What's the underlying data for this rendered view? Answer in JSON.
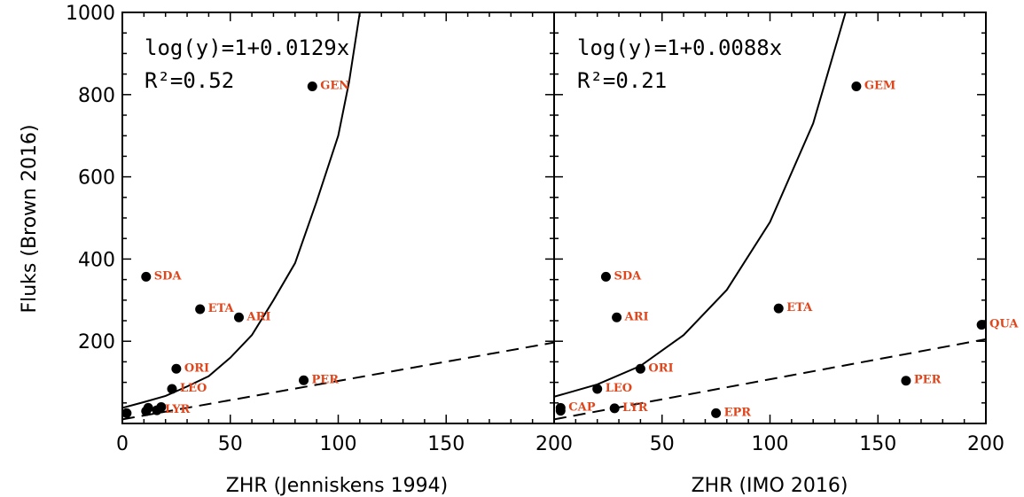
{
  "chart_data": {
    "type": "scatter",
    "ylabel": "Fluks (Brown 2016)",
    "ylim": [
      0,
      1000
    ],
    "yticks": [
      200,
      400,
      600,
      800,
      1000
    ],
    "xlim": [
      0,
      200
    ],
    "accent_label_color": "#e0461c",
    "panels": [
      {
        "name": "left",
        "xlabel": "ZHR (Jenniskens 1994)",
        "xticks": [
          0,
          50,
          100,
          150,
          200
        ],
        "annotation_eq": "log(y)=1+0.0129x",
        "annotation_r2": "R²=0.52",
        "points": [
          {
            "label": "GEN",
            "x": 88,
            "y": 820
          },
          {
            "label": "SDA",
            "x": 11,
            "y": 357
          },
          {
            "label": "ETA",
            "x": 36,
            "y": 278
          },
          {
            "label": "ARI",
            "x": 54,
            "y": 258
          },
          {
            "label": "ORI",
            "x": 25,
            "y": 133
          },
          {
            "label": "LEO",
            "x": 23,
            "y": 84
          },
          {
            "label": "PER",
            "x": 84,
            "y": 105
          },
          {
            "label": "",
            "x": 2,
            "y": 25
          },
          {
            "label": "",
            "x": 11,
            "y": 30
          },
          {
            "label": "",
            "x": 12,
            "y": 38
          },
          {
            "label": "LYR",
            "x": 16,
            "y": 32
          },
          {
            "label": "",
            "x": 18,
            "y": 40
          }
        ],
        "fit_curve": {
          "x": [
            0,
            10,
            20,
            30,
            40,
            50,
            60,
            70,
            80,
            90,
            100,
            105,
            110
          ],
          "y": [
            38,
            52,
            67,
            90,
            115,
            160,
            215,
            300,
            390,
            540,
            700,
            830,
            1000
          ]
        },
        "dashed_line": {
          "x": [
            0,
            200
          ],
          "y": [
            10,
            197
          ]
        }
      },
      {
        "name": "right",
        "xlabel": "ZHR (IMO 2016)",
        "xticks": [
          50,
          100,
          150,
          200
        ],
        "annotation_eq": "log(y)=1+0.0088x",
        "annotation_r2": "R²=0.21",
        "points": [
          {
            "label": "GEM",
            "x": 140,
            "y": 820
          },
          {
            "label": "SDA",
            "x": 24,
            "y": 357
          },
          {
            "label": "ARI",
            "x": 29,
            "y": 258
          },
          {
            "label": "ETA",
            "x": 104,
            "y": 280
          },
          {
            "label": "QUA",
            "x": 198,
            "y": 240
          },
          {
            "label": "ORI",
            "x": 40,
            "y": 133
          },
          {
            "label": "LEO",
            "x": 20,
            "y": 84
          },
          {
            "label": "PER",
            "x": 163,
            "y": 104
          },
          {
            "label": "LYR",
            "x": 28,
            "y": 37
          },
          {
            "label": "CAP",
            "x": 3,
            "y": 38
          },
          {
            "label": "",
            "x": 3,
            "y": 31
          },
          {
            "label": "EPR",
            "x": 75,
            "y": 25
          }
        ],
        "fit_curve": {
          "x": [
            0,
            20,
            40,
            60,
            80,
            100,
            120,
            135
          ],
          "y": [
            65,
            95,
            140,
            215,
            325,
            490,
            730,
            1000
          ]
        },
        "dashed_line": {
          "x": [
            0,
            200
          ],
          "y": [
            10,
            205
          ]
        }
      }
    ]
  }
}
